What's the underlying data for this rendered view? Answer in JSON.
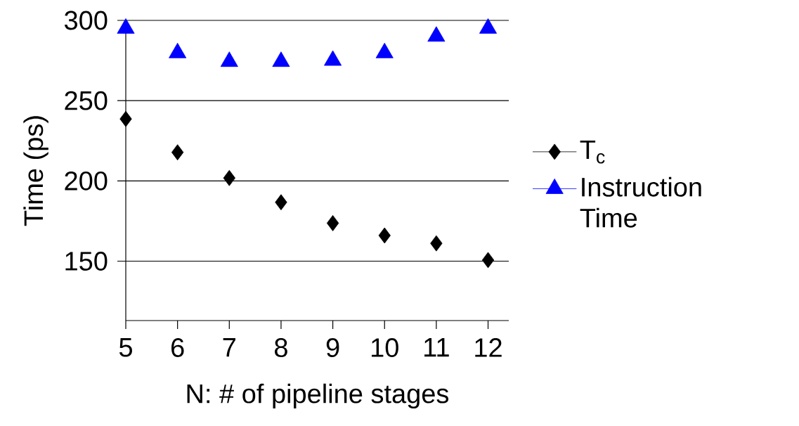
{
  "chart_data": {
    "type": "scatter",
    "xlabel": "N: # of pipeline stages",
    "ylabel": "Time (ps)",
    "x": [
      5,
      6,
      7,
      8,
      9,
      10,
      11,
      12
    ],
    "series": [
      {
        "name": "T$_{c}$",
        "color": "#000000",
        "marker": "diamond",
        "values": [
          238.6,
          217.8,
          201.8,
          186.7,
          173.7,
          166,
          161.1,
          150.7
        ]
      },
      {
        "name": "Instruction Time",
        "color": "#0000ff",
        "marker": "triangle",
        "values": [
          295,
          279.7,
          274.3,
          274.3,
          275,
          279.7,
          290,
          295
        ]
      }
    ],
    "xlim": [
      5,
      12.4
    ],
    "ylim": [
      113,
      300
    ],
    "xticks": [
      5,
      6,
      7,
      8,
      9,
      10,
      11,
      12
    ],
    "yticks": [
      150,
      200,
      250,
      300
    ],
    "grid": "y",
    "legend": "right"
  }
}
